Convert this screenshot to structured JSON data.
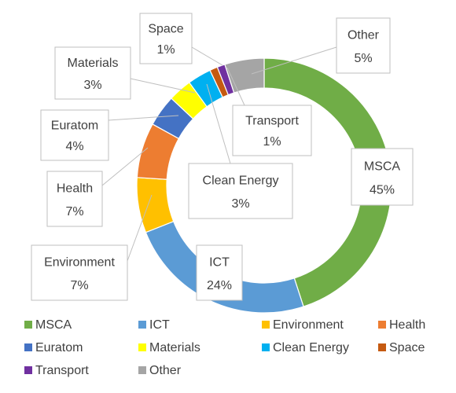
{
  "chart_data": {
    "type": "pie",
    "variant": "doughnut",
    "title": "",
    "start_angle_deg": 0,
    "direction": "clockwise",
    "categories": [
      "MSCA",
      "ICT",
      "Environment",
      "Health",
      "Euratom",
      "Materials",
      "Clean Energy",
      "Space",
      "Transport",
      "Other"
    ],
    "values": [
      45,
      24,
      7,
      7,
      4,
      3,
      3,
      1,
      1,
      5
    ],
    "value_labels": [
      "45%",
      "24%",
      "7%",
      "7%",
      "4%",
      "3%",
      "3%",
      "1%",
      "1%",
      "5%"
    ],
    "colors": [
      "#70ad47",
      "#5b9bd5",
      "#ffc000",
      "#ed7d31",
      "#4472c4",
      "#ffff00",
      "#00b0f0",
      "#c55a11",
      "#7030a0",
      "#a5a5a5"
    ],
    "legend_position": "bottom",
    "data_labels": "callouts"
  }
}
